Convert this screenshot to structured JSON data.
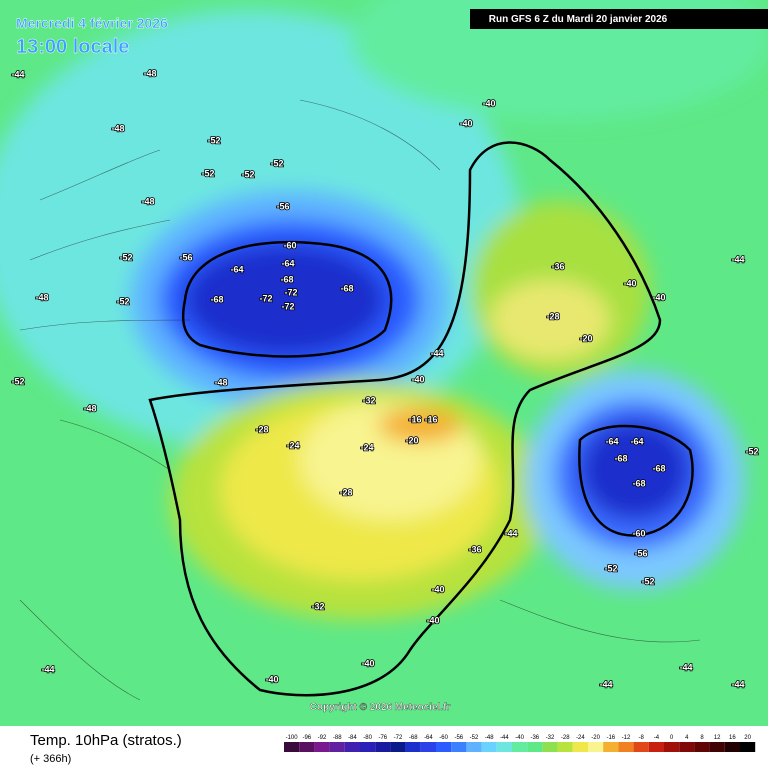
{
  "header": {
    "valid_date": "Mercredi 4 février 2026",
    "local_time": "13:00 locale",
    "run": "Run GFS 6 Z du Mardi 20 janvier 2026"
  },
  "copyright": "Copyright © 2026 Meteociel.fr",
  "footer": {
    "field": "Temp. 10hPa (stratos.)",
    "lead": "(+ 366h)"
  },
  "scale": {
    "values": [
      -100,
      -96,
      -92,
      -88,
      -84,
      -80,
      -76,
      -72,
      -68,
      -64,
      -60,
      -56,
      -52,
      -48,
      -44,
      -40,
      -36,
      -32,
      -28,
      -24,
      -20,
      -16,
      -12,
      -8,
      -4,
      0,
      4,
      8,
      12,
      16,
      20
    ],
    "colors": [
      "#3a0a3a",
      "#5a1060",
      "#7a1890",
      "#6020a0",
      "#4020b0",
      "#2a20b8",
      "#1a1aa0",
      "#0a1a8a",
      "#1a2fcc",
      "#2a40e8",
      "#2a5cff",
      "#3a80ff",
      "#5fb2ff",
      "#6ad2ff",
      "#6de6e0",
      "#62eca0",
      "#5ee887",
      "#8ee050",
      "#b8e23c",
      "#eee84a",
      "#f8f490",
      "#f4b030",
      "#f08020",
      "#e04818",
      "#c82010",
      "#a01008",
      "#800808",
      "#600404",
      "#400202",
      "#200000",
      "#000000"
    ]
  },
  "labels": {
    "values": [
      -60,
      -64,
      -64,
      -68,
      -68,
      -68,
      -72,
      -72,
      -72,
      -56,
      -56,
      -52,
      -52,
      -52,
      -52,
      -52,
      -52,
      -48,
      -48,
      -48,
      -48,
      -52,
      -40,
      -40,
      -36,
      -28,
      -20,
      -32,
      -16,
      -16,
      -20,
      -24,
      -24,
      -28,
      -28,
      -32,
      -40,
      -40,
      -64,
      -64,
      -68,
      -68,
      -68,
      -60,
      -56,
      -52,
      -52,
      -44,
      -44,
      -44,
      -44,
      -44,
      -40,
      -40,
      -44,
      -36,
      -44,
      -40,
      -48,
      -48,
      -40,
      -40,
      -44,
      -52
    ]
  }
}
